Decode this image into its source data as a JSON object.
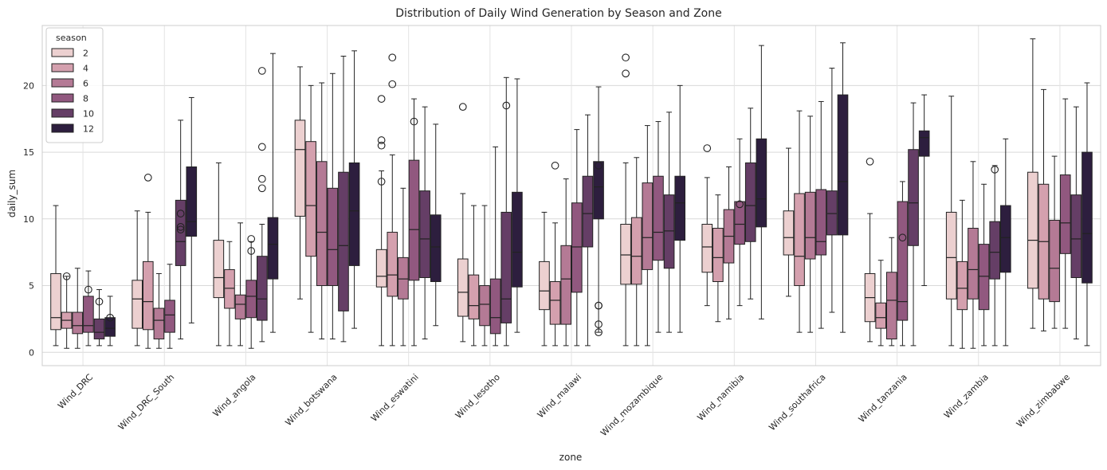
{
  "chart_data": {
    "type": "boxplot",
    "title": "Distribution of Daily Wind Generation by Season and Zone",
    "xlabel": "zone",
    "ylabel": "daily_sum",
    "ylim": [
      -1,
      24.5
    ],
    "yticks": [
      0,
      5,
      10,
      15,
      20
    ],
    "grid": true,
    "legend": {
      "title": "season",
      "placement": "top-left",
      "entries": [
        "2",
        "4",
        "6",
        "8",
        "10",
        "12"
      ]
    },
    "colors": [
      "#ecd0d0",
      "#d4a0ae",
      "#b47a95",
      "#91587f",
      "#653e66",
      "#2d1e3e"
    ],
    "categories": [
      "Wind_DRC",
      "Wind_DRC_South",
      "Wind_angola",
      "Wind_botswana",
      "Wind_eswatini",
      "Wind_lesotho",
      "Wind_malawi",
      "Wind_mozambique",
      "Wind_namibia",
      "Wind_southafrica",
      "Wind_tanzania",
      "Wind_zambia",
      "Wind_zimbabwe"
    ],
    "series": [
      {
        "name": "2",
        "boxes": [
          {
            "whislo": 0.5,
            "q1": 1.7,
            "med": 2.6,
            "q3": 5.9,
            "whishi": 11.0,
            "fliers": []
          },
          {
            "whislo": 0.5,
            "q1": 1.8,
            "med": 4.0,
            "q3": 5.4,
            "whishi": 10.6,
            "fliers": []
          },
          {
            "whislo": 0.5,
            "q1": 4.1,
            "med": 5.6,
            "q3": 8.4,
            "whishi": 14.2,
            "fliers": []
          },
          {
            "whislo": 4.0,
            "q1": 10.2,
            "med": 15.2,
            "q3": 17.4,
            "whishi": 21.4,
            "fliers": []
          },
          {
            "whislo": 0.5,
            "q1": 4.9,
            "med": 5.7,
            "q3": 7.7,
            "whishi": 13.6,
            "fliers": [
              19.0,
              15.9,
              15.5,
              12.8
            ]
          },
          {
            "whislo": 0.8,
            "q1": 2.7,
            "med": 4.5,
            "q3": 7.0,
            "whishi": 11.9,
            "fliers": [
              18.4
            ]
          },
          {
            "whislo": 0.5,
            "q1": 3.2,
            "med": 4.6,
            "q3": 6.8,
            "whishi": 10.5,
            "fliers": []
          },
          {
            "whislo": 0.5,
            "q1": 5.1,
            "med": 7.3,
            "q3": 9.6,
            "whishi": 14.2,
            "fliers": [
              22.1,
              20.9
            ]
          },
          {
            "whislo": 3.5,
            "q1": 6.0,
            "med": 7.9,
            "q3": 9.6,
            "whishi": 13.1,
            "fliers": [
              15.3
            ]
          },
          {
            "whislo": 4.2,
            "q1": 7.3,
            "med": 8.6,
            "q3": 10.6,
            "whishi": 15.3,
            "fliers": []
          },
          {
            "whislo": 0.8,
            "q1": 2.3,
            "med": 4.1,
            "q3": 5.9,
            "whishi": 10.4,
            "fliers": [
              14.3
            ]
          },
          {
            "whislo": 0.5,
            "q1": 4.0,
            "med": 7.1,
            "q3": 10.5,
            "whishi": 19.2,
            "fliers": []
          },
          {
            "whislo": 1.8,
            "q1": 4.8,
            "med": 8.4,
            "q3": 13.5,
            "whishi": 23.5,
            "fliers": []
          }
        ]
      },
      {
        "name": "4",
        "boxes": [
          {
            "whislo": 0.3,
            "q1": 1.8,
            "med": 2.4,
            "q3": 3.0,
            "whishi": 5.7,
            "fliers": [
              5.7
            ]
          },
          {
            "whislo": 0.3,
            "q1": 1.7,
            "med": 3.8,
            "q3": 6.8,
            "whishi": 10.5,
            "fliers": [
              13.1
            ]
          },
          {
            "whislo": 0.5,
            "q1": 3.3,
            "med": 4.8,
            "q3": 6.2,
            "whishi": 8.3,
            "fliers": []
          },
          {
            "whislo": 1.5,
            "q1": 7.2,
            "med": 11.0,
            "q3": 15.8,
            "whishi": 20.0,
            "fliers": []
          },
          {
            "whislo": 0.5,
            "q1": 4.2,
            "med": 5.8,
            "q3": 9.0,
            "whishi": 14.8,
            "fliers": [
              22.1,
              20.1
            ]
          },
          {
            "whislo": 0.5,
            "q1": 2.5,
            "med": 3.5,
            "q3": 5.8,
            "whishi": 11.0,
            "fliers": []
          },
          {
            "whislo": 0.5,
            "q1": 2.1,
            "med": 3.9,
            "q3": 5.3,
            "whishi": 9.7,
            "fliers": [
              14.0
            ]
          },
          {
            "whislo": 0.5,
            "q1": 5.1,
            "med": 7.2,
            "q3": 10.1,
            "whishi": 14.6,
            "fliers": []
          },
          {
            "whislo": 2.3,
            "q1": 5.3,
            "med": 7.1,
            "q3": 9.3,
            "whishi": 11.8,
            "fliers": []
          },
          {
            "whislo": 1.5,
            "q1": 5.0,
            "med": 7.2,
            "q3": 11.9,
            "whishi": 18.1,
            "fliers": []
          },
          {
            "whislo": 0.5,
            "q1": 1.8,
            "med": 2.6,
            "q3": 3.7,
            "whishi": 6.9,
            "fliers": []
          },
          {
            "whislo": 0.3,
            "q1": 3.2,
            "med": 4.8,
            "q3": 6.8,
            "whishi": 11.4,
            "fliers": []
          },
          {
            "whislo": 1.6,
            "q1": 4.0,
            "med": 8.3,
            "q3": 12.6,
            "whishi": 19.7,
            "fliers": []
          }
        ]
      },
      {
        "name": "6",
        "boxes": [
          {
            "whislo": 0.3,
            "q1": 1.4,
            "med": 2.0,
            "q3": 3.0,
            "whishi": 6.3,
            "fliers": []
          },
          {
            "whislo": 0.3,
            "q1": 1.0,
            "med": 2.4,
            "q3": 3.3,
            "whishi": 5.9,
            "fliers": []
          },
          {
            "whislo": 0.5,
            "q1": 2.5,
            "med": 3.6,
            "q3": 4.3,
            "whishi": 9.7,
            "fliers": []
          },
          {
            "whislo": 1.0,
            "q1": 5.0,
            "med": 9.0,
            "q3": 14.3,
            "whishi": 20.2,
            "fliers": []
          },
          {
            "whislo": 0.5,
            "q1": 4.0,
            "med": 5.5,
            "q3": 7.1,
            "whishi": 12.3,
            "fliers": []
          },
          {
            "whislo": 0.5,
            "q1": 2.0,
            "med": 3.6,
            "q3": 5.0,
            "whishi": 11.0,
            "fliers": []
          },
          {
            "whislo": 0.5,
            "q1": 2.1,
            "med": 5.5,
            "q3": 8.0,
            "whishi": 13.0,
            "fliers": []
          },
          {
            "whislo": 0.5,
            "q1": 6.2,
            "med": 8.6,
            "q3": 12.7,
            "whishi": 17.0,
            "fliers": []
          },
          {
            "whislo": 2.5,
            "q1": 6.7,
            "med": 8.7,
            "q3": 10.7,
            "whishi": 13.9,
            "fliers": []
          },
          {
            "whislo": 1.5,
            "q1": 7.0,
            "med": 8.6,
            "q3": 12.0,
            "whishi": 17.7,
            "fliers": []
          },
          {
            "whislo": 0.5,
            "q1": 1.0,
            "med": 3.9,
            "q3": 6.0,
            "whishi": 8.6,
            "fliers": []
          },
          {
            "whislo": 0.3,
            "q1": 4.0,
            "med": 6.2,
            "q3": 9.3,
            "whishi": 14.3,
            "fliers": []
          },
          {
            "whislo": 1.8,
            "q1": 3.8,
            "med": 6.3,
            "q3": 9.9,
            "whishi": 14.7,
            "fliers": []
          }
        ]
      },
      {
        "name": "8",
        "boxes": [
          {
            "whislo": 0.5,
            "q1": 1.5,
            "med": 2.0,
            "q3": 4.2,
            "whishi": 6.1,
            "fliers": [
              4.7
            ]
          },
          {
            "whislo": 0.3,
            "q1": 1.5,
            "med": 2.8,
            "q3": 3.9,
            "whishi": 6.6,
            "fliers": []
          },
          {
            "whislo": 0.3,
            "q1": 2.6,
            "med": 4.2,
            "q3": 5.4,
            "whishi": 8.3,
            "fliers": [
              8.5,
              7.6
            ]
          },
          {
            "whislo": 1.0,
            "q1": 5.0,
            "med": 7.7,
            "q3": 12.3,
            "whishi": 20.9,
            "fliers": []
          },
          {
            "whislo": 0.5,
            "q1": 5.4,
            "med": 9.2,
            "q3": 14.4,
            "whishi": 19.0,
            "fliers": [
              17.3
            ]
          },
          {
            "whislo": 0.5,
            "q1": 1.4,
            "med": 2.6,
            "q3": 5.5,
            "whishi": 15.4,
            "fliers": []
          },
          {
            "whislo": 0.5,
            "q1": 4.5,
            "med": 7.9,
            "q3": 11.2,
            "whishi": 16.7,
            "fliers": []
          },
          {
            "whislo": 1.5,
            "q1": 6.9,
            "med": 9.0,
            "q3": 13.2,
            "whishi": 17.3,
            "fliers": []
          },
          {
            "whislo": 3.5,
            "q1": 8.1,
            "med": 9.6,
            "q3": 11.3,
            "whishi": 16.0,
            "fliers": [
              11.1
            ]
          },
          {
            "whislo": 1.8,
            "q1": 7.3,
            "med": 8.3,
            "q3": 12.2,
            "whishi": 18.8,
            "fliers": []
          },
          {
            "whislo": 0.5,
            "q1": 2.4,
            "med": 3.8,
            "q3": 11.3,
            "whishi": 12.8,
            "fliers": [
              8.6
            ]
          },
          {
            "whislo": 0.5,
            "q1": 3.2,
            "med": 5.7,
            "q3": 8.1,
            "whishi": 12.6,
            "fliers": []
          },
          {
            "whislo": 1.8,
            "q1": 7.4,
            "med": 9.7,
            "q3": 13.3,
            "whishi": 19.0,
            "fliers": []
          }
        ]
      },
      {
        "name": "10",
        "boxes": [
          {
            "whislo": 0.5,
            "q1": 1.0,
            "med": 1.5,
            "q3": 2.5,
            "whishi": 4.7,
            "fliers": [
              3.8
            ]
          },
          {
            "whislo": 1.0,
            "q1": 6.5,
            "med": 8.3,
            "q3": 11.4,
            "whishi": 17.4,
            "fliers": [
              10.4,
              9.4,
              9.2
            ]
          },
          {
            "whislo": 0.8,
            "q1": 2.4,
            "med": 4.0,
            "q3": 7.2,
            "whishi": 9.6,
            "fliers": [
              21.1,
              15.4,
              13.0,
              12.3
            ]
          },
          {
            "whislo": 0.8,
            "q1": 3.1,
            "med": 8.0,
            "q3": 13.5,
            "whishi": 22.2,
            "fliers": []
          },
          {
            "whislo": 1.0,
            "q1": 5.6,
            "med": 8.5,
            "q3": 12.1,
            "whishi": 18.4,
            "fliers": []
          },
          {
            "whislo": 0.5,
            "q1": 2.2,
            "med": 4.0,
            "q3": 10.5,
            "whishi": 20.6,
            "fliers": [
              18.5
            ]
          },
          {
            "whislo": 0.5,
            "q1": 7.9,
            "med": 10.4,
            "q3": 13.2,
            "whishi": 17.8,
            "fliers": []
          },
          {
            "whislo": 1.5,
            "q1": 6.3,
            "med": 9.1,
            "q3": 11.8,
            "whishi": 18.0,
            "fliers": []
          },
          {
            "whislo": 4.0,
            "q1": 8.3,
            "med": 11.0,
            "q3": 14.2,
            "whishi": 18.3,
            "fliers": []
          },
          {
            "whislo": 3.0,
            "q1": 8.8,
            "med": 10.4,
            "q3": 12.1,
            "whishi": 21.3,
            "fliers": []
          },
          {
            "whislo": 0.5,
            "q1": 8.0,
            "med": 11.2,
            "q3": 15.2,
            "whishi": 18.7,
            "fliers": []
          },
          {
            "whislo": 0.5,
            "q1": 5.5,
            "med": 7.5,
            "q3": 9.8,
            "whishi": 14.0,
            "fliers": [
              13.7
            ]
          },
          {
            "whislo": 1.0,
            "q1": 5.6,
            "med": 8.5,
            "q3": 11.8,
            "whishi": 18.4,
            "fliers": []
          }
        ]
      },
      {
        "name": "12",
        "boxes": [
          {
            "whislo": 0.5,
            "q1": 1.2,
            "med": 1.8,
            "q3": 2.6,
            "whishi": 4.2,
            "fliers": [
              2.6
            ]
          },
          {
            "whislo": 2.2,
            "q1": 8.7,
            "med": 9.8,
            "q3": 13.9,
            "whishi": 19.1,
            "fliers": []
          },
          {
            "whislo": 1.5,
            "q1": 5.5,
            "med": 8.1,
            "q3": 10.1,
            "whishi": 22.4,
            "fliers": []
          },
          {
            "whislo": 1.8,
            "q1": 6.5,
            "med": 10.6,
            "q3": 14.2,
            "whishi": 22.6,
            "fliers": []
          },
          {
            "whislo": 2.0,
            "q1": 5.3,
            "med": 7.9,
            "q3": 10.3,
            "whishi": 17.1,
            "fliers": []
          },
          {
            "whislo": 1.5,
            "q1": 4.9,
            "med": 7.5,
            "q3": 12.0,
            "whishi": 20.5,
            "fliers": []
          },
          {
            "whislo": 1.5,
            "q1": 10.0,
            "med": 12.4,
            "q3": 14.3,
            "whishi": 19.9,
            "fliers": [
              14.0,
              3.5,
              3.5,
              2.1,
              1.5
            ]
          },
          {
            "whislo": 1.5,
            "q1": 8.4,
            "med": 11.2,
            "q3": 13.2,
            "whishi": 20.0,
            "fliers": []
          },
          {
            "whislo": 2.5,
            "q1": 9.4,
            "med": 11.5,
            "q3": 16.0,
            "whishi": 23.0,
            "fliers": []
          },
          {
            "whislo": 1.5,
            "q1": 8.8,
            "med": 12.8,
            "q3": 19.3,
            "whishi": 23.2,
            "fliers": []
          },
          {
            "whislo": 5.0,
            "q1": 14.7,
            "med": 16.1,
            "q3": 16.6,
            "whishi": 19.3,
            "fliers": []
          },
          {
            "whislo": 0.5,
            "q1": 6.0,
            "med": 8.6,
            "q3": 11.0,
            "whishi": 16.0,
            "fliers": []
          },
          {
            "whislo": 0.5,
            "q1": 5.2,
            "med": 8.9,
            "q3": 15.0,
            "whishi": 20.2,
            "fliers": []
          }
        ]
      }
    ]
  }
}
